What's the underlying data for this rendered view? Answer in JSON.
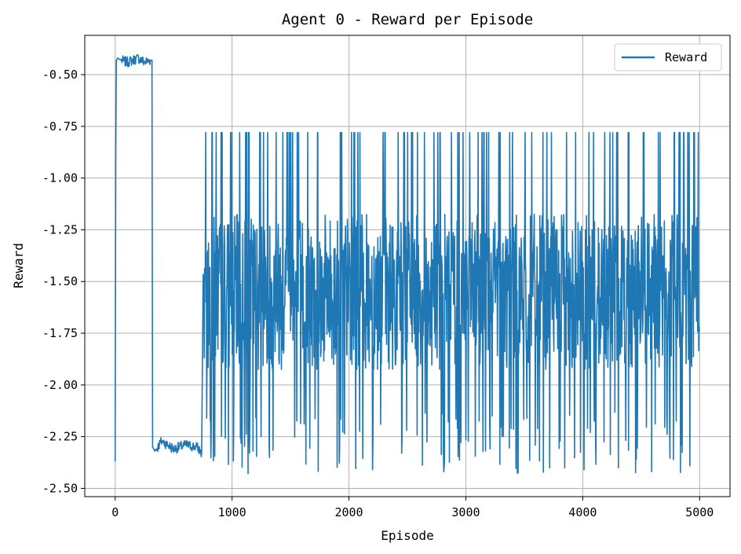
{
  "chart_data": {
    "type": "line",
    "title": "Agent 0 - Reward per Episode",
    "xlabel": "Episode",
    "ylabel": "Reward",
    "xlim": [
      -260,
      5260
    ],
    "ylim": [
      -2.54,
      -0.31
    ],
    "xticks": [
      0,
      1000,
      2000,
      3000,
      4000,
      5000
    ],
    "xtick_labels": [
      "0",
      "1000",
      "2000",
      "3000",
      "4000",
      "5000"
    ],
    "yticks": [
      -0.5,
      -0.75,
      -1.0,
      -1.25,
      -1.5,
      -1.75,
      -2.0,
      -2.25,
      -2.5
    ],
    "ytick_labels": [
      "-0.50",
      "-0.75",
      "-1.00",
      "-1.25",
      "-1.50",
      "-1.75",
      "-2.00",
      "-2.25",
      "-2.50"
    ],
    "grid": true,
    "legend": {
      "position": "top-right",
      "entries": [
        "Reward"
      ]
    },
    "series": [
      {
        "name": "Reward",
        "color": "#1f77b4",
        "x": [
          0,
          5,
          10,
          20,
          50,
          100,
          150,
          200,
          250,
          300,
          315,
          320,
          340,
          400,
          500,
          600,
          700,
          740,
          760,
          800,
          900,
          1000,
          1100,
          1200,
          1300,
          1400,
          1500,
          1600,
          1700,
          1800,
          1900,
          2000,
          2100,
          2200,
          2300,
          2400,
          2500,
          2600,
          2700,
          2800,
          2900,
          3000,
          3100,
          3200,
          3300,
          3400,
          3500,
          3600,
          3700,
          3800,
          3900,
          4000,
          4100,
          4200,
          4300,
          4400,
          4500,
          4600,
          4700,
          4800,
          4900,
          5000
        ],
        "values": [
          -2.37,
          -0.87,
          -0.43,
          -0.42,
          -0.43,
          -0.44,
          -0.43,
          -0.42,
          -0.44,
          -0.43,
          -0.43,
          -2.3,
          -2.32,
          -2.27,
          -2.31,
          -2.29,
          -2.3,
          -2.33,
          -1.4,
          -1.6,
          -1.5,
          -1.55,
          -1.45,
          -1.6,
          -1.5,
          -1.58,
          -1.48,
          -1.62,
          -1.5,
          -1.55,
          -1.45,
          -1.6,
          -1.52,
          -1.55,
          -1.48,
          -1.6,
          -1.5,
          -1.55,
          -1.45,
          -1.58,
          -1.5,
          -1.6,
          -1.52,
          -1.55,
          -1.48,
          -1.6,
          -1.5,
          -1.55,
          -1.45,
          -1.58,
          -1.5,
          -1.6,
          -1.52,
          -1.55,
          -1.48,
          -1.6,
          -1.5,
          -1.55,
          -1.45,
          -1.58,
          -1.5,
          -1.55
        ],
        "noisy_band": {
          "from_episode": 750,
          "to_episode": 5000,
          "min": -2.43,
          "max": -0.78
        }
      }
    ]
  }
}
